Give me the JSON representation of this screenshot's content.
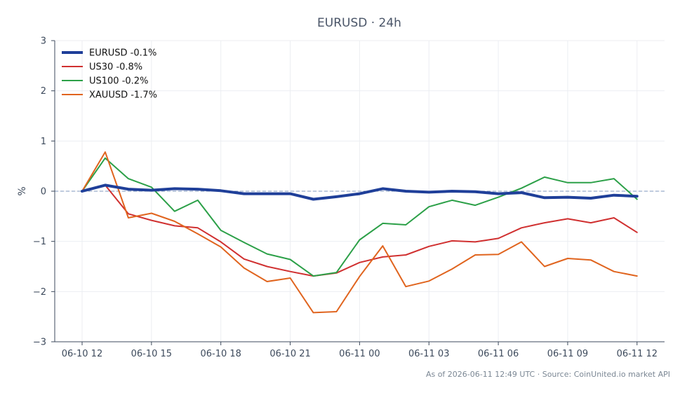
{
  "chart_data": {
    "type": "line",
    "title": "EURUSD · 24h",
    "ylabel": "%",
    "xlabel": "",
    "ylim": [
      -3,
      3
    ],
    "yticks": [
      3,
      2,
      1,
      0,
      -1,
      -2,
      -3
    ],
    "ytick_labels": [
      "3",
      "2",
      "1",
      "0",
      "−1",
      "−2",
      "−3"
    ],
    "x_ticks": [
      {
        "index": 0,
        "label": "06-10 12"
      },
      {
        "index": 3,
        "label": "06-10 15"
      },
      {
        "index": 6,
        "label": "06-10 18"
      },
      {
        "index": 9,
        "label": "06-10 21"
      },
      {
        "index": 12,
        "label": "06-11 00"
      },
      {
        "index": 15,
        "label": "06-11 03"
      },
      {
        "index": 18,
        "label": "06-11 06"
      },
      {
        "index": 21,
        "label": "06-11 09"
      },
      {
        "index": 24,
        "label": "06-11 12"
      }
    ],
    "x": [
      "06-10 12:00",
      "06-10 13:00",
      "06-10 14:00",
      "06-10 15:00",
      "06-10 16:00",
      "06-10 17:00",
      "06-10 18:00",
      "06-10 19:00",
      "06-10 20:00",
      "06-10 21:00",
      "06-10 22:00",
      "06-10 23:00",
      "06-11 00:00",
      "06-11 01:00",
      "06-11 02:00",
      "06-11 03:00",
      "06-11 04:00",
      "06-11 05:00",
      "06-11 06:00",
      "06-11 07:00",
      "06-11 08:00",
      "06-11 09:00",
      "06-11 10:00",
      "06-11 11:00",
      "06-11 12:00"
    ],
    "reference_line": 0,
    "grid": true,
    "legend_position": "top-left",
    "series": [
      {
        "name": "EURUSD -0.1%",
        "color": "#1f3f99",
        "width": 4,
        "values": [
          0,
          0.12,
          0.04,
          0.02,
          0.05,
          0.04,
          0.01,
          -0.05,
          -0.05,
          -0.05,
          -0.16,
          -0.11,
          -0.05,
          0.05,
          0.0,
          -0.02,
          0.0,
          -0.01,
          -0.05,
          -0.03,
          -0.13,
          -0.12,
          -0.14,
          -0.08,
          -0.1
        ]
      },
      {
        "name": "US30 -0.8%",
        "color": "#d03030",
        "width": 2,
        "values": [
          0,
          0.12,
          -0.45,
          -0.58,
          -0.69,
          -0.73,
          -1.01,
          -1.35,
          -1.5,
          -1.6,
          -1.69,
          -1.63,
          -1.42,
          -1.31,
          -1.27,
          -1.1,
          -0.99,
          -1.01,
          -0.94,
          -0.73,
          -0.63,
          -0.55,
          -0.63,
          -0.53,
          -0.82
        ]
      },
      {
        "name": "US100 -0.2%",
        "color": "#2ca048",
        "width": 2,
        "values": [
          0,
          0.66,
          0.25,
          0.08,
          -0.4,
          -0.18,
          -0.78,
          -1.02,
          -1.25,
          -1.36,
          -1.69,
          -1.62,
          -0.97,
          -0.64,
          -0.67,
          -0.31,
          -0.18,
          -0.28,
          -0.12,
          0.06,
          0.28,
          0.17,
          0.17,
          0.25,
          -0.16
        ]
      },
      {
        "name": "XAUUSD -1.7%",
        "color": "#e0641e",
        "width": 2,
        "values": [
          0,
          0.78,
          -0.53,
          -0.44,
          -0.6,
          -0.85,
          -1.11,
          -1.53,
          -1.8,
          -1.73,
          -2.42,
          -2.4,
          -1.7,
          -1.09,
          -1.9,
          -1.79,
          -1.55,
          -1.27,
          -1.26,
          -1.01,
          -1.5,
          -1.34,
          -1.37,
          -1.6,
          -1.69
        ]
      }
    ],
    "footer": "As of 2026-06-11 12:49 UTC · Source: CoinUnited.io market API"
  }
}
